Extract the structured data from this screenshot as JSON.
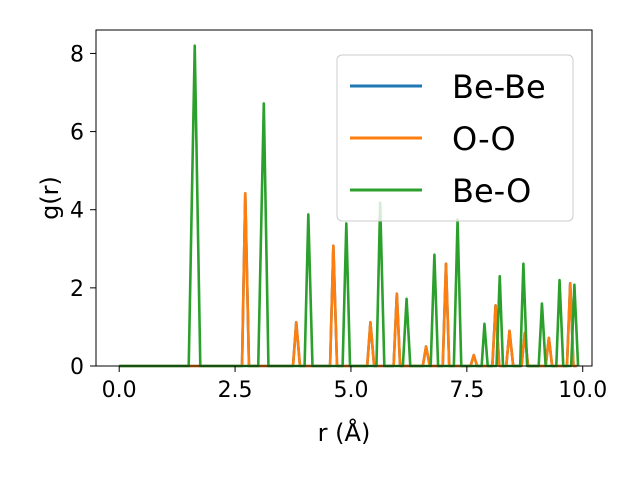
{
  "chart_data": {
    "type": "line",
    "title": "",
    "xlabel": "r (Å)",
    "ylabel": "g(r)",
    "xlim": [
      -0.5,
      10.2
    ],
    "ylim": [
      0,
      8.6
    ],
    "xticks": [
      0.0,
      2.5,
      5.0,
      7.5,
      10.0
    ],
    "xtick_labels": [
      "0.0",
      "2.5",
      "5.0",
      "7.5",
      "10.0"
    ],
    "yticks": [
      0,
      2,
      4,
      6,
      8
    ],
    "ytick_labels": [
      "0",
      "2",
      "4",
      "6",
      "8"
    ],
    "grid": false,
    "legend_position": "top-right",
    "series": [
      {
        "name": "Be-Be",
        "color": "#1f77b4",
        "x": [
          0.0,
          2.65,
          2.72,
          2.8,
          3.75,
          3.82,
          3.9,
          4.55,
          4.62,
          4.7,
          5.35,
          5.42,
          5.5,
          5.92,
          5.99,
          6.06,
          6.55,
          6.62,
          6.7,
          6.98,
          7.05,
          7.12,
          7.58,
          7.65,
          7.72,
          8.05,
          8.12,
          8.2,
          8.35,
          8.42,
          8.5,
          8.68,
          8.75,
          8.82,
          9.2,
          9.27,
          9.34,
          9.66,
          9.73,
          9.8,
          9.87
        ],
        "y": [
          0.0,
          0.0,
          4.42,
          0.0,
          0.0,
          1.12,
          0.0,
          0.0,
          3.08,
          0.0,
          0.0,
          1.12,
          0.0,
          0.0,
          1.85,
          0.0,
          0.0,
          0.5,
          0.0,
          0.0,
          2.62,
          0.0,
          0.0,
          0.28,
          0.0,
          0.0,
          1.55,
          0.0,
          0.0,
          0.9,
          0.0,
          0.0,
          0.85,
          0.0,
          0.0,
          0.72,
          0.0,
          0.0,
          2.12,
          0.0,
          0.0
        ]
      },
      {
        "name": "O-O",
        "color": "#ff7f0e",
        "x": [
          0.0,
          2.65,
          2.72,
          2.8,
          3.75,
          3.82,
          3.9,
          4.55,
          4.62,
          4.7,
          5.35,
          5.42,
          5.5,
          5.92,
          5.99,
          6.06,
          6.55,
          6.62,
          6.7,
          6.98,
          7.05,
          7.12,
          7.58,
          7.65,
          7.72,
          8.05,
          8.12,
          8.2,
          8.35,
          8.42,
          8.5,
          8.68,
          8.75,
          8.82,
          9.2,
          9.27,
          9.34,
          9.66,
          9.73,
          9.8,
          9.87
        ],
        "y": [
          0.0,
          0.0,
          4.42,
          0.0,
          0.0,
          1.12,
          0.0,
          0.0,
          3.08,
          0.0,
          0.0,
          1.12,
          0.0,
          0.0,
          1.85,
          0.0,
          0.0,
          0.5,
          0.0,
          0.0,
          2.62,
          0.0,
          0.0,
          0.28,
          0.0,
          0.0,
          1.55,
          0.0,
          0.0,
          0.9,
          0.0,
          0.0,
          0.85,
          0.0,
          0.0,
          0.72,
          0.0,
          0.0,
          2.12,
          0.0,
          0.0
        ]
      },
      {
        "name": "Be-O",
        "color": "#2ca02c",
        "x": [
          0.0,
          1.5,
          1.63,
          1.75,
          3.0,
          3.12,
          3.22,
          4.0,
          4.08,
          4.17,
          4.82,
          4.9,
          4.98,
          5.55,
          5.63,
          5.72,
          6.12,
          6.2,
          6.28,
          6.72,
          6.8,
          6.88,
          7.22,
          7.3,
          7.38,
          7.82,
          7.88,
          7.95,
          8.14,
          8.21,
          8.28,
          8.65,
          8.72,
          8.8,
          9.05,
          9.12,
          9.2,
          9.43,
          9.5,
          9.58,
          9.75,
          9.82,
          9.9
        ],
        "y": [
          0.0,
          0.0,
          8.2,
          0.0,
          0.0,
          6.72,
          0.0,
          0.0,
          3.88,
          0.0,
          0.0,
          3.65,
          0.0,
          0.0,
          4.18,
          0.0,
          0.0,
          1.72,
          0.0,
          0.0,
          2.85,
          0.0,
          0.0,
          3.75,
          0.0,
          0.0,
          1.08,
          0.0,
          0.0,
          2.3,
          0.0,
          0.0,
          2.62,
          0.0,
          0.0,
          1.6,
          0.0,
          0.0,
          2.2,
          0.0,
          0.0,
          2.08,
          0.0
        ]
      }
    ]
  }
}
